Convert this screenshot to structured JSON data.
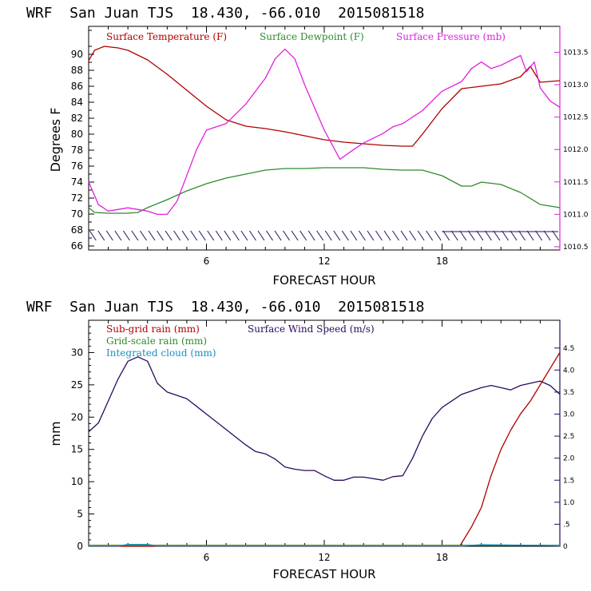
{
  "colors": {
    "temperature": "#b00000",
    "dewpoint": "#2e8b2e",
    "pressure": "#e020e0",
    "wind": "#2a0a5e",
    "subgrid_rain": "#b00000",
    "gridscale_rain": "#2e8b2e",
    "cloud": "#1a8fbf"
  },
  "chart_data": [
    {
      "type": "line",
      "title": "WRF  San Juan TJS  18.430, -66.010  2015081518",
      "xlabel": "FORECAST HOUR",
      "ylabel": "Degrees F",
      "xlim": [
        0,
        24
      ],
      "ylim": [
        65.5,
        93.5
      ],
      "x_ticks": [
        6,
        12,
        18
      ],
      "y_ticks": [
        66,
        68,
        70,
        72,
        74,
        76,
        78,
        80,
        82,
        84,
        86,
        88,
        90
      ],
      "y2_ticks": [
        "1010.5",
        "1011.0",
        "1011.5",
        "1012.0",
        "1012.5",
        "1013.0",
        "1013.5"
      ],
      "y2_values": [
        1010.5,
        1011.0,
        1011.5,
        1012.0,
        1012.5,
        1013.0,
        1013.5
      ],
      "y2lim": [
        1010.45,
        1013.9
      ],
      "legend": [
        "Surface Temperature (F)",
        "Surface Dewpoint (F)",
        "Surface Pressure (mb)"
      ],
      "legend_position": "top",
      "wind_barbs": {
        "level_F": 67.3,
        "count": 56
      },
      "series": [
        {
          "name": "Surface Temperature (F)",
          "axis": "left",
          "color_key": "temperature",
          "x": [
            0,
            0.3,
            0.8,
            1.5,
            2,
            3,
            4,
            5,
            6,
            7,
            8,
            9,
            10,
            11,
            12,
            13,
            14,
            15,
            16,
            16.5,
            17,
            18,
            19,
            20,
            21,
            22,
            22.5,
            23,
            24
          ],
          "y": [
            89.2,
            90.5,
            91.0,
            90.8,
            90.5,
            89.3,
            87.5,
            85.5,
            83.5,
            81.8,
            81.0,
            80.7,
            80.3,
            79.8,
            79.3,
            79.0,
            78.8,
            78.6,
            78.5,
            78.5,
            80.0,
            83.2,
            85.7,
            86.0,
            86.3,
            87.2,
            88.5,
            86.5,
            86.7
          ]
        },
        {
          "name": "Surface Dewpoint (F)",
          "axis": "left",
          "color_key": "dewpoint",
          "x": [
            0,
            0.3,
            1,
            2,
            2.5,
            3,
            4,
            5,
            6,
            7,
            8,
            9,
            10,
            11,
            12,
            13,
            14,
            15,
            16,
            17,
            18,
            19,
            19.5,
            20,
            21,
            22,
            23,
            24
          ],
          "y": [
            70.8,
            70.2,
            70.1,
            70.1,
            70.2,
            70.8,
            71.8,
            72.9,
            73.8,
            74.5,
            75.0,
            75.5,
            75.7,
            75.7,
            75.8,
            75.8,
            75.8,
            75.6,
            75.5,
            75.5,
            74.8,
            73.5,
            73.5,
            74.0,
            73.7,
            72.7,
            71.2,
            70.8
          ]
        },
        {
          "name": "Surface Pressure (mb)",
          "axis": "right",
          "color_key": "pressure",
          "x": [
            0,
            0.5,
            1,
            2,
            3,
            3.5,
            4,
            4.5,
            5,
            5.5,
            6,
            7,
            8,
            9,
            9.5,
            10,
            10.5,
            11,
            12,
            12.8,
            13.5,
            14,
            15,
            15.5,
            16,
            16.5,
            17,
            17.5,
            18,
            19,
            19.5,
            20,
            20.5,
            21,
            22,
            22.3,
            22.7,
            23,
            23.5,
            24
          ],
          "y": [
            1011.5,
            1011.15,
            1011.05,
            1011.1,
            1011.05,
            1011.0,
            1011.0,
            1011.2,
            1011.6,
            1012.0,
            1012.3,
            1012.4,
            1012.7,
            1013.1,
            1013.4,
            1013.55,
            1013.4,
            1013.0,
            1012.3,
            1011.85,
            1012.0,
            1012.1,
            1012.25,
            1012.35,
            1012.4,
            1012.5,
            1012.6,
            1012.75,
            1012.9,
            1013.05,
            1013.25,
            1013.35,
            1013.25,
            1013.3,
            1013.45,
            1013.2,
            1013.35,
            1012.95,
            1012.75,
            1012.65
          ]
        }
      ]
    },
    {
      "type": "line",
      "title": "WRF  San Juan TJS  18.430, -66.010  2015081518",
      "xlabel": "FORECAST HOUR",
      "ylabel": "mm",
      "xlim": [
        0,
        24
      ],
      "ylim": [
        0,
        35
      ],
      "x_ticks": [
        6,
        12,
        18
      ],
      "y_ticks": [
        0,
        5,
        10,
        15,
        20,
        25,
        30
      ],
      "y2_ticks": [
        "0",
        ".5",
        "1.0",
        "1.5",
        "2.0",
        "2.5",
        "3.0",
        "3.5",
        "4.0",
        "4.5"
      ],
      "y2_values": [
        0,
        0.5,
        1.0,
        1.5,
        2.0,
        2.5,
        3.0,
        3.5,
        4.0,
        4.5
      ],
      "y2lim": [
        0,
        5.13
      ],
      "legend": [
        "Sub-grid rain (mm)",
        "Surface Wind Speed (m/s)",
        "Grid-scale rain (mm)",
        "Integrated cloud (mm)"
      ],
      "legend_position": "top-left",
      "series": [
        {
          "name": "Surface Wind Speed (m/s)",
          "axis": "right",
          "color_key": "wind",
          "x": [
            0,
            0.5,
            1,
            1.5,
            2,
            2.5,
            3,
            3.5,
            4,
            5,
            6,
            7,
            8,
            8.5,
            9,
            9.5,
            10,
            10.5,
            11,
            11.5,
            12,
            12.5,
            13,
            13.5,
            14,
            15,
            15.5,
            16,
            16.5,
            17,
            17.5,
            18,
            19,
            20,
            20.5,
            21,
            21.5,
            22,
            23,
            23.5,
            24
          ],
          "y": [
            2.6,
            2.8,
            3.3,
            3.8,
            4.2,
            4.3,
            4.2,
            3.7,
            3.5,
            3.35,
            3.0,
            2.65,
            2.3,
            2.15,
            2.1,
            1.98,
            1.8,
            1.75,
            1.72,
            1.72,
            1.6,
            1.5,
            1.5,
            1.57,
            1.57,
            1.5,
            1.58,
            1.6,
            2.0,
            2.5,
            2.9,
            3.15,
            3.45,
            3.6,
            3.65,
            3.6,
            3.55,
            3.65,
            3.75,
            3.65,
            3.45
          ]
        },
        {
          "name": "Sub-grid rain (mm)",
          "axis": "left",
          "color_key": "subgrid_rain",
          "x": [
            0,
            18.9,
            19.5,
            20,
            20.5,
            21,
            21.5,
            22,
            22.5,
            23,
            23.5,
            24
          ],
          "y": [
            0,
            0,
            3,
            6,
            11,
            15,
            18,
            20.5,
            22.5,
            25,
            27.5,
            30
          ]
        },
        {
          "name": "Grid-scale rain (mm)",
          "axis": "left",
          "color_key": "gridscale_rain",
          "x": [
            0,
            24
          ],
          "y": [
            0.15,
            0.15
          ]
        },
        {
          "name": "Integrated cloud (mm)",
          "axis": "left",
          "color_key": "cloud",
          "x": [
            0,
            1.5,
            2,
            3,
            3.5,
            12,
            16,
            18,
            19,
            20,
            24
          ],
          "y": [
            0.05,
            0.05,
            0.3,
            0.3,
            0.05,
            0.05,
            0.05,
            0.05,
            0.05,
            0.25,
            0.1
          ]
        }
      ]
    }
  ]
}
